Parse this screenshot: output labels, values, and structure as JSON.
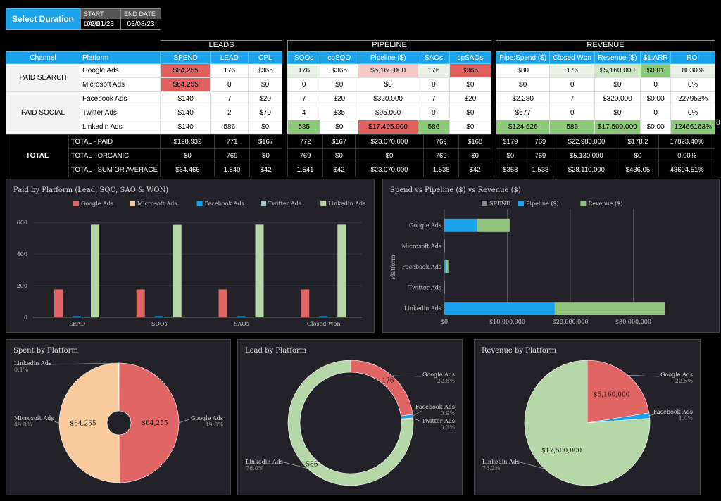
{
  "duration": {
    "button": "Select Duration",
    "start_label": "START DATE",
    "start_value": "02/01/23",
    "end_label": "END DATE",
    "end_value": "03/08/23"
  },
  "sections": {
    "leads": "LEADS",
    "pipeline": "PIPELINE",
    "revenue": "REVENUE"
  },
  "left_table": {
    "headers": [
      "Channel",
      "Platform"
    ],
    "groups": {
      "paid_search": "PAID SEARCH",
      "paid_social": "PAID SOCIAL",
      "total": "TOTAL"
    },
    "platforms": [
      "Google Ads",
      "Microsoft Ads",
      "Facebook Ads",
      "Twitter Ads",
      "Linkedin Ads",
      "TOTAL - PAID",
      "TOTAL - ORGANIC",
      "TOTAL - SUM OR AVERAGE"
    ]
  },
  "leads_table": {
    "headers": [
      "SPEND",
      "LEAD",
      "CPL"
    ],
    "rows": [
      [
        "$64,255",
        "176",
        "$365"
      ],
      [
        "$64,255",
        "0",
        "$0"
      ],
      [
        "$140",
        "7",
        "$20"
      ],
      [
        "$140",
        "2",
        "$70"
      ],
      [
        "$140",
        "586",
        "$0"
      ],
      [
        "$128,932",
        "771",
        "$167"
      ],
      [
        "$0",
        "769",
        "$0"
      ],
      [
        "$64,466",
        "1,540",
        "$42"
      ]
    ]
  },
  "pipeline_table": {
    "headers": [
      "SQOs",
      "cpSQO",
      "Pipeline ($)",
      "SAOs",
      "cpSAOs"
    ],
    "rows": [
      [
        "176",
        "$365",
        "$5,160,000",
        "176",
        "$365"
      ],
      [
        "0",
        "$0",
        "$0",
        "0",
        "$0"
      ],
      [
        "7",
        "$20",
        "$320,000",
        "7",
        "$20"
      ],
      [
        "4",
        "$35",
        "$95,000",
        "0",
        "$0"
      ],
      [
        "585",
        "$0",
        "$17,495,000",
        "586",
        "$0"
      ],
      [
        "772",
        "$167",
        "$23,070,000",
        "769",
        "$168"
      ],
      [
        "769",
        "$0",
        "$0",
        "769",
        "$0"
      ],
      [
        "1,541",
        "$42",
        "$23,070,000",
        "1,538",
        "$42"
      ]
    ]
  },
  "revenue_table": {
    "headers": [
      "Pipe:Spend ($)",
      "Closed Won",
      "Revenue ($)",
      "$1:ARR",
      "ROI"
    ],
    "rows": [
      [
        "$80",
        "176",
        "$5,160,000",
        "$0.01",
        "8030%"
      ],
      [
        "$0",
        "0",
        "$0",
        "0",
        "0%"
      ],
      [
        "$2,280",
        "7",
        "$320,000",
        "$0.00",
        "227953%"
      ],
      [
        "$677",
        "0",
        "$0",
        "0",
        "0%"
      ],
      [
        "$124,626",
        "586",
        "$17,500,000",
        "$0.00",
        "12466163%"
      ],
      [
        "$179",
        "769",
        "$22,980,000",
        "$178.2",
        "17823.40%"
      ],
      [
        "$0",
        "769",
        "$5,130,000",
        "$0",
        "0.00%"
      ],
      [
        "$358",
        "1,538",
        "$28,110,000",
        "$436.05",
        "43604.51%"
      ]
    ],
    "overflow_char": "8"
  },
  "chart_data": [
    {
      "type": "bar",
      "title": "Paid by Platform (Lead, SQO, SAO & WON)",
      "categories": [
        "LEAD",
        "SQOs",
        "SAOs",
        "Closed Won"
      ],
      "series": [
        {
          "name": "Google Ads",
          "color": "#e06666",
          "values": [
            176,
            176,
            176,
            176
          ]
        },
        {
          "name": "Microsoft Ads",
          "color": "#f9cb9c",
          "values": [
            0,
            0,
            0,
            0
          ]
        },
        {
          "name": "Facebook Ads",
          "color": "#1aa3ea",
          "values": [
            7,
            7,
            7,
            7
          ]
        },
        {
          "name": "Twitter Ads",
          "color": "#a2c4c9",
          "values": [
            2,
            4,
            0,
            0
          ]
        },
        {
          "name": "Linkedin Ads",
          "color": "#b6d7a8",
          "values": [
            586,
            585,
            586,
            586
          ]
        }
      ],
      "yticks": [
        "0",
        "200",
        "400",
        "600"
      ],
      "ylim": [
        0,
        650
      ],
      "legend": "top"
    },
    {
      "type": "bar",
      "orientation": "horizontal",
      "stacked": true,
      "title": "Spend vs Pipeline ($) vs Revenue ($)",
      "categories": [
        "Google Ads",
        "Microsoft Ads",
        "Facebook Ads",
        "Twitter Ads",
        "Linkedin Ads"
      ],
      "series": [
        {
          "name": "SPEND",
          "color": "#888888",
          "values": [
            64255,
            64255,
            140,
            140,
            140
          ]
        },
        {
          "name": "Pipeline ($)",
          "color": "#1aa3ea",
          "values": [
            5160000,
            0,
            320000,
            95000,
            17495000
          ]
        },
        {
          "name": "Revenue ($)",
          "color": "#93c47d",
          "values": [
            5160000,
            0,
            320000,
            0,
            17500000
          ]
        }
      ],
      "ylabel": "Platform",
      "xticks": [
        "$0",
        "$10,000,000",
        "$20,000,000",
        "$30,000,000"
      ],
      "xlim": [
        0,
        40000000
      ],
      "legend": "top"
    },
    {
      "type": "pie",
      "title": "Spent by Platform",
      "donut": "small",
      "slices": [
        {
          "name": "Google Ads",
          "value": 64255,
          "pct": "49.8%",
          "label": "$64,255",
          "color": "#e06666"
        },
        {
          "name": "Microsoft Ads",
          "value": 64255,
          "pct": "49.8%",
          "label": "$64,255",
          "color": "#f9cb9c"
        },
        {
          "name": "Linkedin Ads",
          "value": 140,
          "pct": "0.1%",
          "label": "",
          "color": "#b6d7a8"
        }
      ]
    },
    {
      "type": "pie",
      "title": "Lead by Platform",
      "donut": "large",
      "slices": [
        {
          "name": "Google Ads",
          "value": 176,
          "pct": "22.8%",
          "label": "176",
          "color": "#e06666"
        },
        {
          "name": "Facebook Ads",
          "value": 7,
          "pct": "0.9%",
          "label": "",
          "color": "#1aa3ea"
        },
        {
          "name": "Twitter Ads",
          "value": 2,
          "pct": "0.3%",
          "label": "",
          "color": "#a2c4c9"
        },
        {
          "name": "Linkedin Ads",
          "value": 586,
          "pct": "76.0%",
          "label": "586",
          "color": "#b6d7a8"
        }
      ]
    },
    {
      "type": "pie",
      "title": "Revenue by Platform",
      "donut": "none",
      "slices": [
        {
          "name": "Google Ads",
          "value": 5160000,
          "pct": "22.5%",
          "label": "$5,160,000",
          "color": "#e06666"
        },
        {
          "name": "Facebook Ads",
          "value": 320000,
          "pct": "1.4%",
          "label": "",
          "color": "#1aa3ea"
        },
        {
          "name": "Linkedin Ads",
          "value": 17500000,
          "pct": "76.2%",
          "label": "$17,500,000",
          "color": "#b6d7a8"
        }
      ]
    }
  ]
}
